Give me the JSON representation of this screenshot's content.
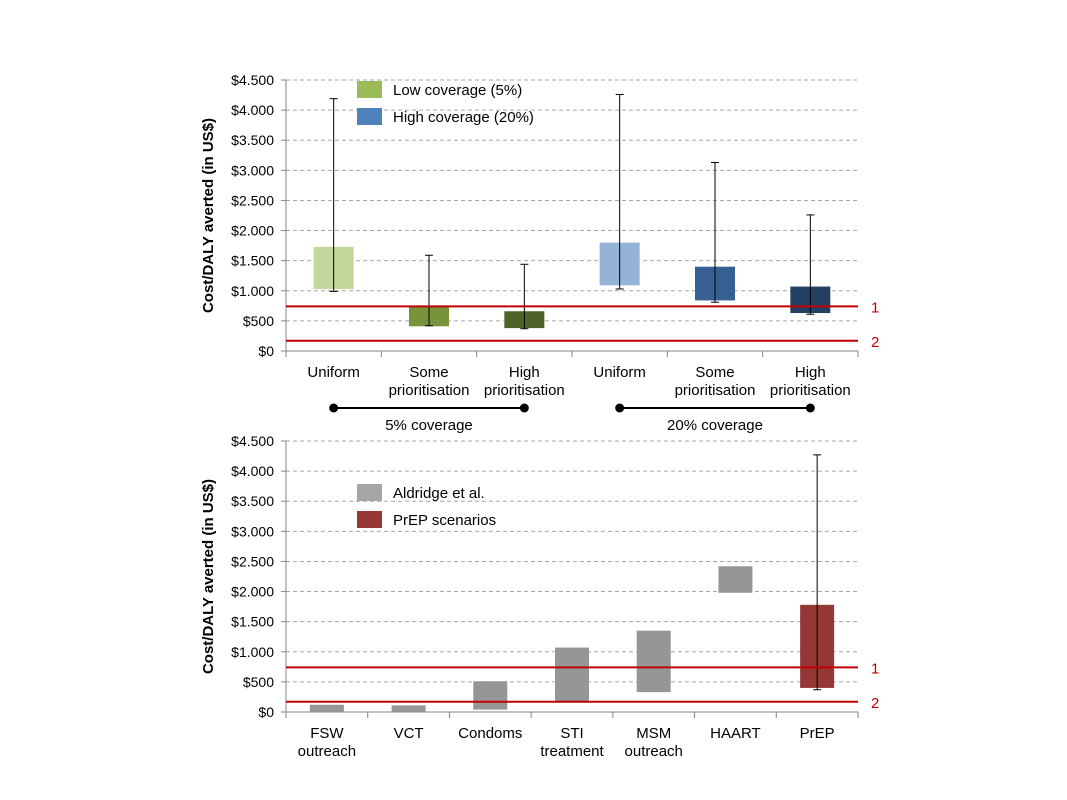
{
  "chart_data": [
    {
      "type": "bar",
      "chart_form": "floating range bars with error bars",
      "ylabel": "Cost/DALY averted (in US$)",
      "ylim": [
        0,
        4500
      ],
      "ytick_values": [
        0,
        500,
        1000,
        1500,
        2000,
        2500,
        3000,
        3500,
        4000,
        4500
      ],
      "ytick_labels": [
        "$0",
        "$500",
        "$1.000",
        "$1.500",
        "$2.000",
        "$2.500",
        "$3.000",
        "$3.500",
        "$4.000",
        "$4.500"
      ],
      "grid": "horizontal dashed",
      "legend_position": "top-left",
      "legend": [
        {
          "label": "Low coverage (5%)",
          "color": "#9bbb59"
        },
        {
          "label": "High coverage (20%)",
          "color": "#4f81bd"
        }
      ],
      "categories": [
        [
          "Uniform"
        ],
        [
          "Some",
          "prioritisation"
        ],
        [
          "High",
          "prioritisation"
        ],
        [
          "Uniform"
        ],
        [
          "Some",
          "prioritisation"
        ],
        [
          "High",
          "prioritisation"
        ]
      ],
      "bars": [
        {
          "low": 1030,
          "high": 1730,
          "err_low": 990,
          "err_high": 4190,
          "color": "#c4d79b"
        },
        {
          "low": 410,
          "high": 740,
          "err_low": 420,
          "err_high": 1590,
          "color": "#77933c"
        },
        {
          "low": 380,
          "high": 660,
          "err_low": 370,
          "err_high": 1440,
          "color": "#4f6228"
        },
        {
          "low": 1090,
          "high": 1800,
          "err_low": 1030,
          "err_high": 4260,
          "color": "#95b3d7"
        },
        {
          "low": 840,
          "high": 1400,
          "err_low": 810,
          "err_high": 3130,
          "color": "#366092"
        },
        {
          "low": 630,
          "high": 1070,
          "err_low": 610,
          "err_high": 2260,
          "color": "#244062"
        }
      ],
      "thresholds": [
        {
          "value": 740,
          "label": "1",
          "color": "#c00000"
        },
        {
          "value": 170,
          "label": "2",
          "color": "#c00000"
        }
      ],
      "groups": [
        {
          "label": "5% coverage",
          "from_category": 0,
          "to_category": 2
        },
        {
          "label": "20% coverage",
          "from_category": 3,
          "to_category": 5
        }
      ]
    },
    {
      "type": "bar",
      "chart_form": "floating range bars with error bars",
      "ylabel": "Cost/DALY averted (in US$)",
      "ylim": [
        0,
        4500
      ],
      "ytick_values": [
        0,
        500,
        1000,
        1500,
        2000,
        2500,
        3000,
        3500,
        4000,
        4500
      ],
      "ytick_labels": [
        "$0",
        "$500",
        "$1.000",
        "$1.500",
        "$2.000",
        "$2.500",
        "$3.000",
        "$3.500",
        "$4.000",
        "$4.500"
      ],
      "grid": "horizontal dashed",
      "legend_position": "top-left",
      "legend": [
        {
          "label": "Aldridge et al.",
          "color": "#a6a6a6"
        },
        {
          "label": "PrEP scenarios",
          "color": "#953735"
        }
      ],
      "categories": [
        [
          "FSW",
          "outreach"
        ],
        [
          "VCT"
        ],
        [
          "Condoms"
        ],
        [
          "STI",
          "treatment"
        ],
        [
          "MSM",
          "outreach"
        ],
        [
          "HAART"
        ],
        [
          "PrEP"
        ]
      ],
      "bars": [
        {
          "low": 0,
          "high": 120,
          "color": "#969696"
        },
        {
          "low": 0,
          "high": 110,
          "color": "#969696"
        },
        {
          "low": 40,
          "high": 510,
          "color": "#969696"
        },
        {
          "low": 180,
          "high": 1070,
          "color": "#969696"
        },
        {
          "low": 330,
          "high": 1350,
          "color": "#969696"
        },
        {
          "low": 1980,
          "high": 2420,
          "color": "#969696"
        },
        {
          "low": 400,
          "high": 1780,
          "err_low": 370,
          "err_high": 4270,
          "color": "#953735"
        }
      ],
      "thresholds": [
        {
          "value": 740,
          "label": "1",
          "color": "#c00000"
        },
        {
          "value": 170,
          "label": "2",
          "color": "#c00000"
        }
      ]
    }
  ]
}
